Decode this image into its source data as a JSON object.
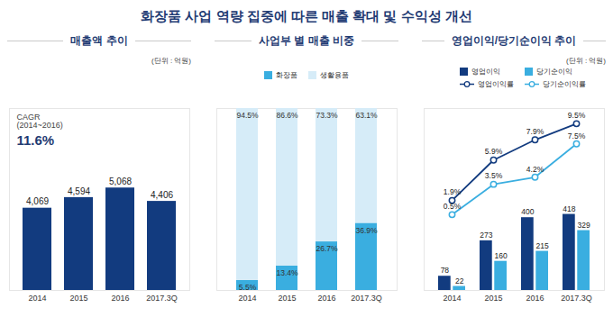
{
  "title": "화장품 사업 역량 집중에 따른 매출 확대 및 수익성 개선",
  "chart_data": [
    {
      "type": "bar",
      "title": "매출액 추이",
      "unit": "(단위 : 억원)",
      "categories": [
        "2014",
        "2015",
        "2016",
        "2017.3Q"
      ],
      "values": [
        4069,
        4594,
        5068,
        4406
      ],
      "value_labels": [
        "4,069",
        "4,594",
        "5,068",
        "4,406"
      ],
      "color": "#123b7f",
      "ylim": [
        0,
        9000
      ],
      "data_labels": true,
      "tick_labels": "x",
      "annotation": [
        "CAGR",
        "(2014~2016)",
        "11.6%"
      ]
    },
    {
      "type": "bar",
      "stacked": true,
      "title": "사업부 별 매출 비중",
      "categories": [
        "2014",
        "2015",
        "2016",
        "2017.3Q"
      ],
      "series": [
        {
          "name": "화장품",
          "color": "#3aaee0",
          "values": [
            5.5,
            13.4,
            26.7,
            36.9
          ],
          "value_labels": [
            "5.5%",
            "13.4%",
            "26.7%",
            "36.9%"
          ]
        },
        {
          "name": "생활용품",
          "color": "#d6ecf8",
          "values": [
            94.5,
            86.6,
            73.3,
            63.1
          ],
          "value_labels": [
            "94.5%",
            "86.6%",
            "73.3%",
            "63.1%"
          ]
        }
      ],
      "ylim": [
        0,
        100
      ],
      "data_labels": true,
      "tick_labels": "x",
      "legend": "top"
    },
    {
      "type": "bar",
      "title": "영업이익/당기순이익 추이",
      "unit": "(단위 : 억원)",
      "categories": [
        "2014",
        "2015",
        "2016",
        "2017.3Q"
      ],
      "series": [
        {
          "name": "영업이익",
          "type": "bar",
          "color": "#123b7f",
          "values": [
            78,
            273,
            400,
            418
          ]
        },
        {
          "name": "당기순이익",
          "type": "bar",
          "color": "#3aaee0",
          "values": [
            22,
            160,
            215,
            329
          ]
        },
        {
          "name": "영업이익률",
          "type": "line",
          "axis": "y2",
          "color": "#123b7f",
          "marker": "circle",
          "values": [
            1.9,
            5.9,
            7.9,
            9.5
          ],
          "value_labels": [
            "1.9%",
            "5.9%",
            "7.9%",
            "9.5%"
          ]
        },
        {
          "name": "당기순이익률",
          "type": "line",
          "axis": "y2",
          "color": "#3aaee0",
          "marker": "circle",
          "values": [
            0.5,
            3.5,
            4.2,
            7.5
          ],
          "value_labels": [
            "0.5%",
            "3.5%",
            "4.2%",
            "7.5%"
          ]
        }
      ],
      "ylim": [
        0,
        1000
      ],
      "y2lim": [
        -7,
        11
      ],
      "data_labels": true,
      "tick_labels": "x",
      "legend": "top"
    }
  ]
}
